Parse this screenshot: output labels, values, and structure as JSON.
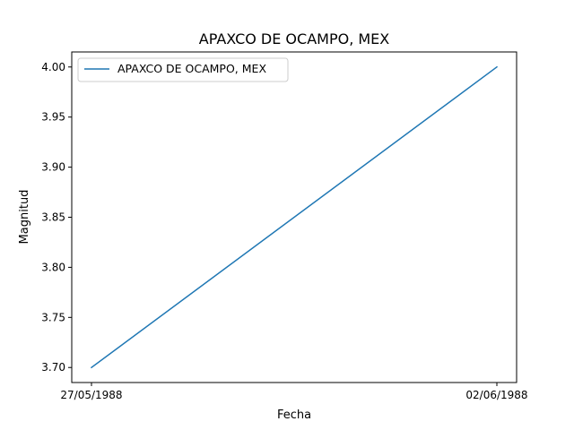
{
  "chart_data": {
    "type": "line",
    "title": "APAXCO DE OCAMPO, MEX",
    "xlabel": "Fecha",
    "ylabel": "Magnitud",
    "x": [
      "27/05/1988",
      "02/06/1988"
    ],
    "series": [
      {
        "name": "APAXCO DE OCAMPO, MEX",
        "values": [
          3.7,
          4.0
        ],
        "color": "#1f77b4"
      }
    ],
    "xticks": [
      "27/05/1988",
      "02/06/1988"
    ],
    "yticks": [
      "3.70",
      "3.75",
      "3.80",
      "3.85",
      "3.90",
      "3.95",
      "4.00"
    ],
    "ylim": [
      3.685,
      4.015
    ],
    "grid": false,
    "legend_position": "upper-left"
  }
}
